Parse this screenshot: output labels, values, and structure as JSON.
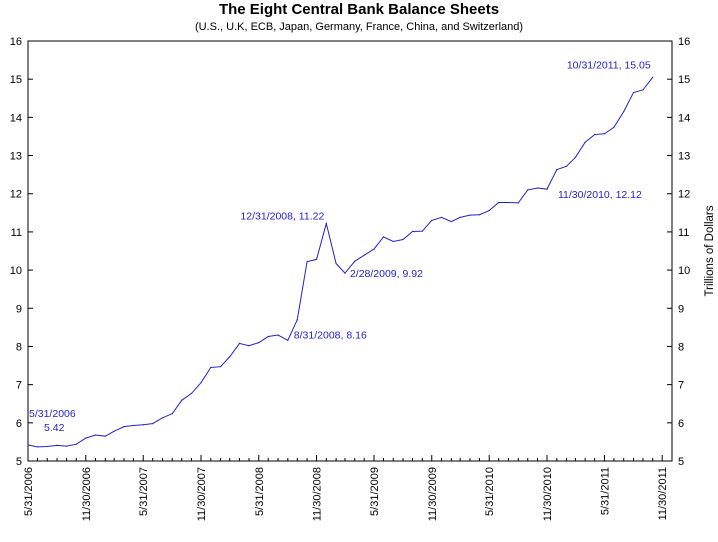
{
  "chart_data": {
    "type": "line",
    "title": "The Eight Central Bank Balance Sheets",
    "subtitle": "(U.S., U.K, ECB, Japan, Germany, France, China, and Switzerland)",
    "xlabel": "",
    "ylabel": "Trillions of Dollars",
    "ylim": [
      5,
      16
    ],
    "yticks": [
      5,
      6,
      7,
      8,
      9,
      10,
      11,
      12,
      13,
      14,
      15,
      16
    ],
    "xlim": [
      "2006-05-31",
      "2011-12-31"
    ],
    "x_tick_labels": [
      "5/31/2006",
      "11/30/2006",
      "5/31/2007",
      "11/30/2007",
      "5/31/2008",
      "11/30/2008",
      "5/31/2009",
      "11/30/2009",
      "5/31/2010",
      "11/30/2010",
      "5/31/2011",
      "11/30/2011"
    ],
    "grid": false,
    "line_color": "#2222cc",
    "series": [
      {
        "x": [
          "2006-05-31",
          "2006-06-30",
          "2006-07-31",
          "2006-08-31",
          "2006-09-30",
          "2006-10-31",
          "2006-11-30",
          "2006-12-31",
          "2007-01-31",
          "2007-02-28",
          "2007-03-31",
          "2007-04-30",
          "2007-05-31",
          "2007-06-30",
          "2007-07-31",
          "2007-08-31",
          "2007-09-30",
          "2007-10-31",
          "2007-11-30",
          "2007-12-31",
          "2008-01-31",
          "2008-02-29",
          "2008-03-31",
          "2008-04-30",
          "2008-05-31",
          "2008-06-30",
          "2008-07-31",
          "2008-08-31",
          "2008-09-30",
          "2008-10-31",
          "2008-11-30",
          "2008-12-31",
          "2009-01-31",
          "2009-02-28",
          "2009-03-31",
          "2009-04-30",
          "2009-05-31",
          "2009-06-30",
          "2009-07-31",
          "2009-08-31",
          "2009-09-30",
          "2009-10-31",
          "2009-11-30",
          "2009-12-31",
          "2010-01-31",
          "2010-02-28",
          "2010-03-31",
          "2010-04-30",
          "2010-05-31",
          "2010-06-30",
          "2010-07-31",
          "2010-08-31",
          "2010-09-30",
          "2010-10-31",
          "2010-11-30",
          "2010-12-31",
          "2011-01-31",
          "2011-02-28",
          "2011-03-31",
          "2011-04-30",
          "2011-05-31",
          "2011-06-30",
          "2011-07-31",
          "2011-08-31",
          "2011-09-30",
          "2011-10-31"
        ],
        "values": [
          5.42,
          5.37,
          5.38,
          5.41,
          5.39,
          5.44,
          5.6,
          5.68,
          5.65,
          5.78,
          5.9,
          5.93,
          5.95,
          5.98,
          6.13,
          6.24,
          6.59,
          6.77,
          7.05,
          7.45,
          7.47,
          7.73,
          8.08,
          8.02,
          8.1,
          8.26,
          8.3,
          8.16,
          8.7,
          10.22,
          10.28,
          11.22,
          10.17,
          9.92,
          10.23,
          10.39,
          10.55,
          10.87,
          10.75,
          10.8,
          11.01,
          11.02,
          11.3,
          11.38,
          11.27,
          11.38,
          11.44,
          11.45,
          11.56,
          11.77,
          11.77,
          11.76,
          12.1,
          12.15,
          12.12,
          12.63,
          12.72,
          12.95,
          13.35,
          13.55,
          13.57,
          13.74,
          14.15,
          14.65,
          14.72,
          15.05
        ]
      }
    ],
    "annotations": [
      {
        "lines": [
          "5/31/2006",
          "5.42"
        ],
        "x": "2006-05-31",
        "y": 5.42
      },
      {
        "lines": [
          "8/31/2008, 8.16"
        ],
        "x": "2008-08-31",
        "y": 8.16
      },
      {
        "lines": [
          "12/31/2008, 11.22"
        ],
        "x": "2008-12-31",
        "y": 11.22
      },
      {
        "lines": [
          "2/28/2009, 9.92"
        ],
        "x": "2009-02-28",
        "y": 9.92
      },
      {
        "lines": [
          "11/30/2010, 12.12"
        ],
        "x": "2010-11-30",
        "y": 12.12
      },
      {
        "lines": [
          "10/31/2011, 15.05"
        ],
        "x": "2011-10-31",
        "y": 15.05
      }
    ]
  }
}
